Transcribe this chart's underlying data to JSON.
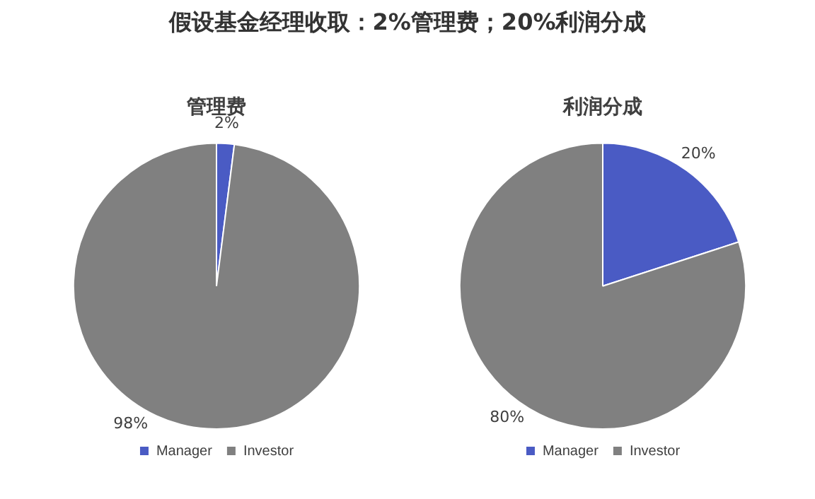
{
  "chart_data": [
    {
      "type": "other",
      "title": "假设基金经理收取：2%管理费；20%利润分成"
    },
    {
      "type": "pie",
      "title": "管理费",
      "categories": [
        "Manager",
        "Investor"
      ],
      "values": [
        2,
        98
      ],
      "value_labels": [
        "2%",
        "98%"
      ],
      "colors": [
        "#4a5bc4",
        "#808080"
      ],
      "legend": "bottom"
    },
    {
      "type": "pie",
      "title": "利润分成",
      "categories": [
        "Manager",
        "Investor"
      ],
      "values": [
        20,
        80
      ],
      "value_labels": [
        "20%",
        "80%"
      ],
      "colors": [
        "#4a5bc4",
        "#808080"
      ],
      "legend": "bottom"
    }
  ]
}
